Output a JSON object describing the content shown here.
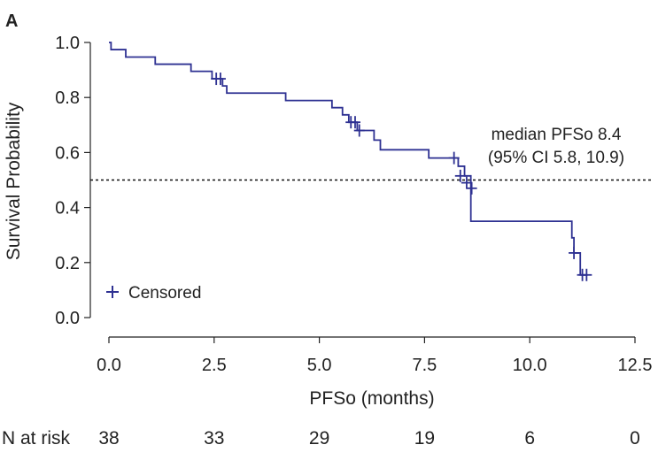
{
  "panel_label": "A",
  "chart_data": {
    "type": "line",
    "subtype": "kaplan-meier",
    "xlabel": "PFSo (months)",
    "ylabel": "Survival Probability",
    "xlim": [
      0,
      12.5
    ],
    "ylim": [
      0,
      1.0
    ],
    "x_ticks": [
      "0.0",
      "2.5",
      "5.0",
      "7.5",
      "10.0",
      "12.5"
    ],
    "y_ticks": [
      "0.0",
      "0.2",
      "0.4",
      "0.6",
      "0.8",
      "1.0"
    ],
    "series": [
      {
        "color": "#2e3192",
        "steps": [
          [
            0,
            1.0
          ],
          [
            0.05,
            0.974
          ],
          [
            0.4,
            0.947
          ],
          [
            1.1,
            0.921
          ],
          [
            1.95,
            0.895
          ],
          [
            2.45,
            0.868
          ],
          [
            2.7,
            0.842
          ],
          [
            2.8,
            0.816
          ],
          [
            4.2,
            0.789
          ],
          [
            5.3,
            0.763
          ],
          [
            5.55,
            0.737
          ],
          [
            5.7,
            0.71
          ],
          [
            5.9,
            0.68
          ],
          [
            6.3,
            0.645
          ],
          [
            6.45,
            0.61
          ],
          [
            7.6,
            0.58
          ],
          [
            8.3,
            0.55
          ],
          [
            8.45,
            0.515
          ],
          [
            8.6,
            0.35
          ],
          [
            11.0,
            0.29
          ],
          [
            11.05,
            0.235
          ],
          [
            11.2,
            0.155
          ],
          [
            11.35,
            0.155
          ]
        ],
        "censored": [
          [
            2.55,
            0.868
          ],
          [
            2.65,
            0.868
          ],
          [
            5.75,
            0.71
          ],
          [
            5.85,
            0.71
          ],
          [
            5.95,
            0.68
          ],
          [
            8.2,
            0.58
          ],
          [
            8.35,
            0.515
          ],
          [
            8.5,
            0.49
          ],
          [
            8.62,
            0.47
          ],
          [
            11.05,
            0.235
          ],
          [
            11.25,
            0.155
          ],
          [
            11.35,
            0.155
          ]
        ]
      }
    ],
    "reference_line": {
      "y": 0.5,
      "style": "dotted"
    },
    "annotation": [
      "median PFSo 8.4",
      "(95% CI 5.8, 10.9)"
    ],
    "legend": {
      "label": "Censored",
      "position": "bottom-left"
    },
    "risk_table": {
      "label": "N at risk",
      "values": [
        "38",
        "33",
        "29",
        "19",
        "6",
        "0"
      ]
    }
  }
}
